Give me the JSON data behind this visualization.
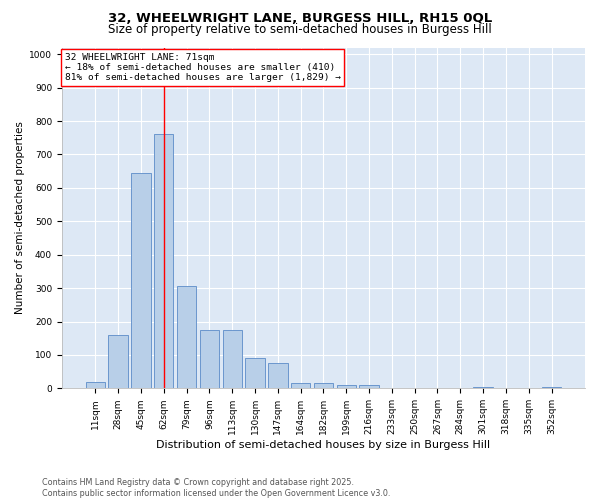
{
  "title1": "32, WHEELWRIGHT LANE, BURGESS HILL, RH15 0QL",
  "title2": "Size of property relative to semi-detached houses in Burgess Hill",
  "xlabel": "Distribution of semi-detached houses by size in Burgess Hill",
  "ylabel": "Number of semi-detached properties",
  "bin_labels": [
    "11sqm",
    "28sqm",
    "45sqm",
    "62sqm",
    "79sqm",
    "96sqm",
    "113sqm",
    "130sqm",
    "147sqm",
    "164sqm",
    "182sqm",
    "199sqm",
    "216sqm",
    "233sqm",
    "250sqm",
    "267sqm",
    "284sqm",
    "301sqm",
    "318sqm",
    "335sqm",
    "352sqm"
  ],
  "bar_heights": [
    20,
    160,
    645,
    760,
    305,
    175,
    175,
    90,
    75,
    15,
    15,
    10,
    10,
    0,
    0,
    0,
    0,
    5,
    0,
    0,
    5
  ],
  "bar_color": "#b8cfe8",
  "bar_edge_color": "#5b8cc8",
  "annotation_line1": "32 WHEELWRIGHT LANE: 71sqm",
  "annotation_line2": "← 18% of semi-detached houses are smaller (410)",
  "annotation_line3": "81% of semi-detached houses are larger (1,829) →",
  "ylim": [
    0,
    1020
  ],
  "yticks": [
    0,
    100,
    200,
    300,
    400,
    500,
    600,
    700,
    800,
    900,
    1000
  ],
  "bg_color": "#dde8f5",
  "footer1": "Contains HM Land Registry data © Crown copyright and database right 2025.",
  "footer2": "Contains public sector information licensed under the Open Government Licence v3.0.",
  "title1_fontsize": 9.5,
  "title2_fontsize": 8.5,
  "xlabel_fontsize": 8,
  "ylabel_fontsize": 7.5,
  "tick_fontsize": 6.5,
  "annotation_fontsize": 6.8,
  "footer_fontsize": 5.8
}
